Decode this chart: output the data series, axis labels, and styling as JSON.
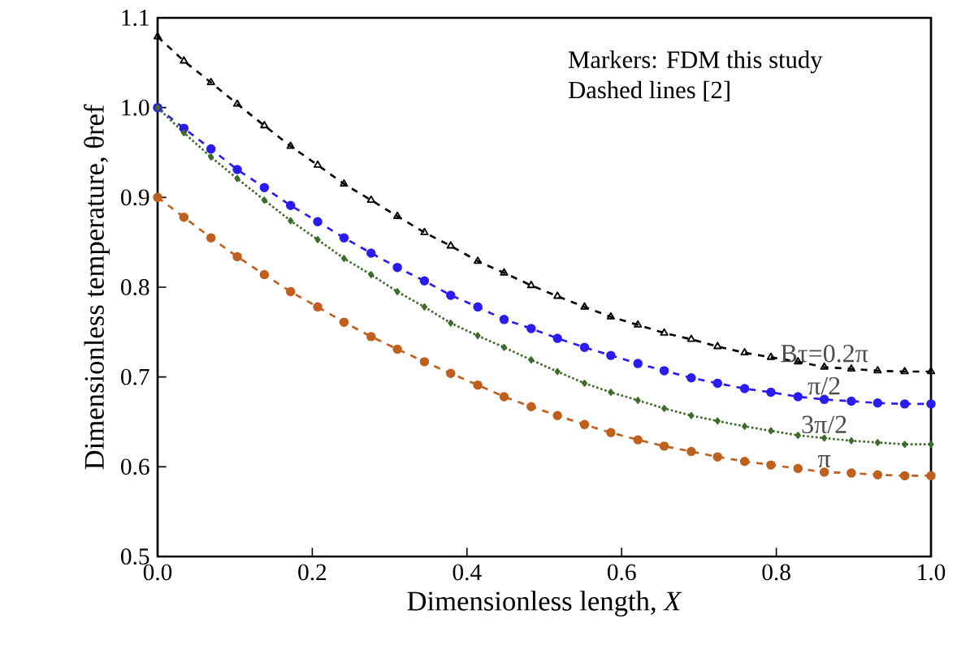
{
  "chart_data": {
    "type": "line",
    "xlabel": "Dimensionless length, *X*",
    "ylabel": "Dimensionless temperature, θref",
    "annotations": [
      "Markers: FDM this study",
      "Dashed lines [2]"
    ],
    "x": [
      0,
      0.034,
      0.069,
      0.103,
      0.138,
      0.172,
      0.207,
      0.241,
      0.276,
      0.31,
      0.345,
      0.379,
      0.414,
      0.448,
      0.483,
      0.517,
      0.552,
      0.586,
      0.621,
      0.655,
      0.69,
      0.724,
      0.759,
      0.793,
      0.828,
      0.862,
      0.897,
      0.931,
      0.966,
      1
    ],
    "xlim": [
      0,
      1
    ],
    "ylim": [
      0.5,
      1.1
    ],
    "xticks": [
      {
        "value": 0,
        "label": "0.0"
      },
      {
        "value": 0.2,
        "label": "0.2"
      },
      {
        "value": 0.4,
        "label": "0.4"
      },
      {
        "value": 0.6,
        "label": "0.6"
      },
      {
        "value": 0.8,
        "label": "0.8"
      },
      {
        "value": 1,
        "label": "1.0"
      }
    ],
    "yticks": [
      {
        "value": 0.5,
        "label": "0.5"
      },
      {
        "value": 0.6,
        "label": "0.6"
      },
      {
        "value": 0.7,
        "label": "0.7"
      },
      {
        "value": 0.8,
        "label": "0.8"
      },
      {
        "value": 0.9,
        "label": "0.9"
      },
      {
        "value": 1,
        "label": "1.0"
      },
      {
        "value": 1.1,
        "label": "1.1"
      }
    ],
    "grid": false,
    "legend": false,
    "series": [
      {
        "name": "Bτ=0.2π",
        "color": "#000000",
        "marker": "triangle",
        "line_style": "dashed",
        "values": [
          1.079,
          1.052,
          1.028,
          1.004,
          0.98,
          0.957,
          0.936,
          0.915,
          0.897,
          0.879,
          0.861,
          0.846,
          0.829,
          0.816,
          0.802,
          0.79,
          0.778,
          0.767,
          0.758,
          0.749,
          0.742,
          0.734,
          0.727,
          0.722,
          0.717,
          0.711,
          0.709,
          0.707,
          0.706,
          0.706
        ]
      },
      {
        "name": "π/2",
        "color": "#2a1cf0",
        "marker": "circle",
        "line_style": "dashed",
        "values": [
          1.0,
          0.977,
          0.954,
          0.931,
          0.911,
          0.891,
          0.873,
          0.855,
          0.838,
          0.822,
          0.807,
          0.791,
          0.778,
          0.764,
          0.754,
          0.743,
          0.733,
          0.724,
          0.715,
          0.707,
          0.699,
          0.693,
          0.687,
          0.683,
          0.678,
          0.675,
          0.673,
          0.671,
          0.67,
          0.67
        ]
      },
      {
        "name": "3π/2",
        "color": "#3f6b2a",
        "marker": "diamond",
        "line_style": "dotted",
        "values": [
          1.0,
          0.972,
          0.945,
          0.921,
          0.897,
          0.874,
          0.853,
          0.832,
          0.814,
          0.795,
          0.778,
          0.76,
          0.746,
          0.733,
          0.719,
          0.706,
          0.693,
          0.683,
          0.674,
          0.665,
          0.657,
          0.651,
          0.645,
          0.64,
          0.635,
          0.632,
          0.629,
          0.627,
          0.625,
          0.625
        ]
      },
      {
        "name": "π",
        "color": "#c0601e",
        "marker": "circle",
        "line_style": "dashed",
        "values": [
          0.9,
          0.878,
          0.855,
          0.834,
          0.814,
          0.795,
          0.778,
          0.761,
          0.745,
          0.731,
          0.717,
          0.704,
          0.691,
          0.678,
          0.667,
          0.657,
          0.647,
          0.638,
          0.63,
          0.623,
          0.617,
          0.611,
          0.606,
          0.602,
          0.598,
          0.594,
          0.593,
          0.591,
          0.59,
          0.59
        ]
      }
    ]
  }
}
